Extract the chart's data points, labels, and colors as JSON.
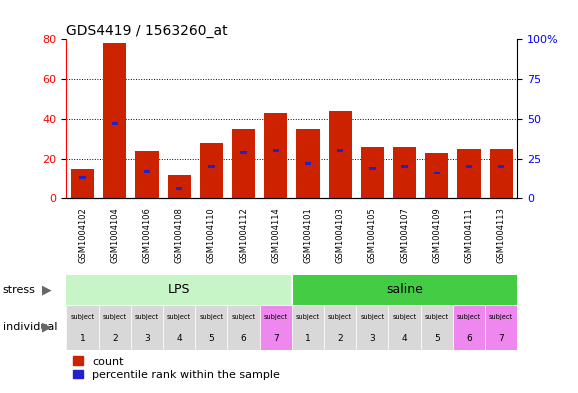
{
  "title": "GDS4419 / 1563260_at",
  "samples": [
    "GSM1004102",
    "GSM1004104",
    "GSM1004106",
    "GSM1004108",
    "GSM1004110",
    "GSM1004112",
    "GSM1004114",
    "GSM1004101",
    "GSM1004103",
    "GSM1004105",
    "GSM1004107",
    "GSM1004109",
    "GSM1004111",
    "GSM1004113"
  ],
  "counts": [
    15,
    78,
    24,
    12,
    28,
    35,
    43,
    35,
    44,
    26,
    26,
    23,
    25,
    25
  ],
  "percentiles": [
    13,
    47,
    17,
    6,
    20,
    29,
    30,
    22,
    30,
    19,
    20,
    16,
    20,
    20
  ],
  "individual_labels_top": [
    "subject",
    "subject",
    "subject",
    "subject",
    "subject",
    "subject",
    "subject",
    "subject",
    "subject",
    "subject",
    "subject",
    "subject",
    "subject",
    "subject"
  ],
  "individual_labels_bot": [
    "1",
    "2",
    "3",
    "4",
    "5",
    "6",
    "7",
    "1",
    "2",
    "3",
    "4",
    "5",
    "6",
    "7"
  ],
  "subject_colors": [
    "#d8d8d8",
    "#d8d8d8",
    "#d8d8d8",
    "#d8d8d8",
    "#d8d8d8",
    "#d8d8d8",
    "#ee88ee",
    "#d8d8d8",
    "#d8d8d8",
    "#d8d8d8",
    "#d8d8d8",
    "#d8d8d8",
    "#ee88ee",
    "#ee88ee"
  ],
  "lps_color": "#c8f5c8",
  "saline_color": "#44cc44",
  "bar_color": "#cc2200",
  "percentile_color": "#2222cc",
  "xticklabel_bg": "#d0d0d0",
  "ylim_left": [
    0,
    80
  ],
  "ylim_right": [
    0,
    100
  ],
  "yticks_left": [
    0,
    20,
    40,
    60,
    80
  ],
  "yticks_right": [
    0,
    25,
    50,
    75,
    100
  ],
  "background_color": "#ffffff"
}
